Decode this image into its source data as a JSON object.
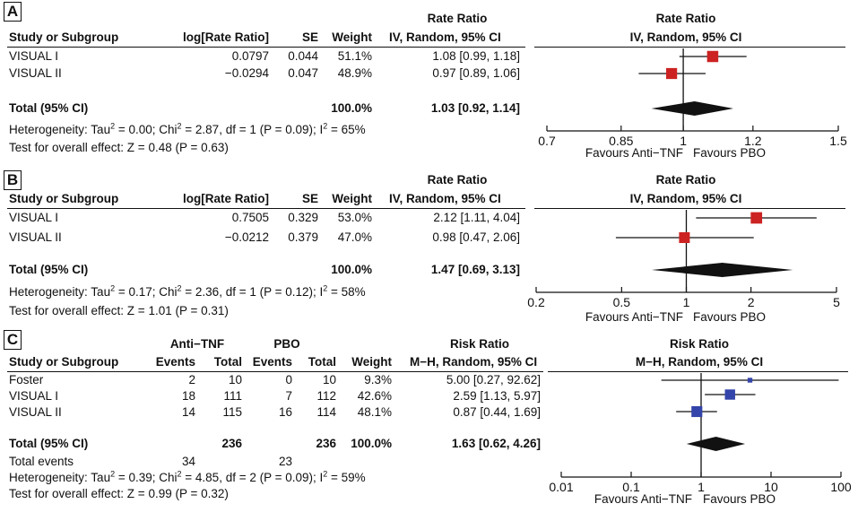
{
  "chart_data": [
    {
      "type": "forest",
      "panel": "A",
      "scale": "log",
      "xlim": [
        0.7,
        1.5
      ],
      "xticks": [
        0.7,
        0.85,
        1,
        1.2,
        1.5
      ],
      "xtick_labels": [
        "0.7",
        "0.85",
        "1",
        "1.2",
        "1.5"
      ],
      "marker_color": "#cc2222",
      "headers": {
        "top": "Rate Ratio",
        "study": "Study or Subgroup",
        "c1": "log[Rate Ratio]",
        "c2": "SE",
        "weight": "Weight",
        "effect": "IV, Random, 95% CI",
        "plot_title": "Rate Ratio",
        "plot_sub": "IV, Random, 95% CI"
      },
      "studies": [
        {
          "name": "VISUAL I",
          "c1": "0.0797",
          "c2": "0.044",
          "weight": "51.1%",
          "ci_text": "1.08 [0.99, 1.18]",
          "est": 1.08,
          "lo": 0.99,
          "hi": 1.18,
          "w": 51.1
        },
        {
          "name": "VISUAL II",
          "c1": "−0.0294",
          "c2": "0.047",
          "weight": "48.9%",
          "ci_text": "0.97 [0.89, 1.06]",
          "est": 0.97,
          "lo": 0.89,
          "hi": 1.06,
          "w": 48.9
        }
      ],
      "total": {
        "label": "Total (95% CI)",
        "weight": "100.0%",
        "ci_text": "1.03 [0.92, 1.14]",
        "est": 1.03,
        "lo": 0.92,
        "hi": 1.14
      },
      "heterogeneity": {
        "prefix": "Heterogeneity: Tau",
        "sup1": "2",
        "mid": " = 0.00; Chi",
        "sup2": "2",
        "mid2": " = 2.87, df = 1 (P = 0.09); I",
        "sup3": "2",
        "suffix": " = 65%"
      },
      "overall": "Test for overall effect: Z = 0.48 (P = 0.63)",
      "favours_left": "Favours Anti−TNF",
      "favours_right": "Favours PBO"
    },
    {
      "type": "forest",
      "panel": "B",
      "scale": "log",
      "xlim": [
        0.2,
        5
      ],
      "xticks": [
        0.2,
        0.5,
        1,
        2,
        5
      ],
      "xtick_labels": [
        "0.2",
        "0.5",
        "1",
        "2",
        "5"
      ],
      "marker_color": "#cc2222",
      "headers": {
        "top": "Rate Ratio",
        "study": "Study or Subgroup",
        "c1": "log[Rate Ratio]",
        "c2": "SE",
        "weight": "Weight",
        "effect": "IV, Random, 95% CI",
        "plot_title": "Rate Ratio",
        "plot_sub": "IV, Random, 95% CI"
      },
      "studies": [
        {
          "name": "VISUAL I",
          "c1": "0.7505",
          "c2": "0.329",
          "weight": "53.0%",
          "ci_text": "2.12 [1.11, 4.04]",
          "est": 2.12,
          "lo": 1.11,
          "hi": 4.04,
          "w": 53.0
        },
        {
          "name": "VISUAL II",
          "c1": "−0.0212",
          "c2": "0.379",
          "weight": "47.0%",
          "ci_text": "0.98 [0.47, 2.06]",
          "est": 0.98,
          "lo": 0.47,
          "hi": 2.06,
          "w": 47.0
        }
      ],
      "total": {
        "label": "Total (95% CI)",
        "weight": "100.0%",
        "ci_text": "1.47 [0.69, 3.13]",
        "est": 1.47,
        "lo": 0.69,
        "hi": 3.13
      },
      "heterogeneity": {
        "prefix": "Heterogeneity: Tau",
        "sup1": "2",
        "mid": " = 0.17; Chi",
        "sup2": "2",
        "mid2": " = 2.36, df = 1 (P = 0.12); I",
        "sup3": "2",
        "suffix": " = 58%"
      },
      "overall": "Test for overall effect: Z = 1.01 (P = 0.31)",
      "favours_left": "Favours Anti−TNF",
      "favours_right": "Favours PBO"
    },
    {
      "type": "forest",
      "panel": "C",
      "scale": "log",
      "xlim": [
        0.01,
        100
      ],
      "xticks": [
        0.01,
        0.1,
        1,
        10,
        100
      ],
      "xtick_labels": [
        "0.01",
        "0.1",
        "1",
        "10",
        "100"
      ],
      "marker_color": "#3344aa",
      "headers": {
        "group1": "Anti−TNF",
        "group2": "PBO",
        "top": "Risk Ratio",
        "study": "Study or Subgroup",
        "ev1": "Events",
        "tot1": "Total",
        "ev2": "Events",
        "tot2": "Total",
        "weight": "Weight",
        "effect": "M−H, Random, 95% CI",
        "plot_title": "Risk Ratio",
        "plot_sub": "M−H, Random, 95% CI"
      },
      "studies": [
        {
          "name": "Foster",
          "ev1": "2",
          "tot1": "10",
          "ev2": "0",
          "tot2": "10",
          "weight": "9.3%",
          "ci_text": "5.00 [0.27, 92.62]",
          "est": 5.0,
          "lo": 0.27,
          "hi": 92.62,
          "w": 9.3
        },
        {
          "name": "VISUAL I",
          "ev1": "18",
          "tot1": "111",
          "ev2": "7",
          "tot2": "112",
          "weight": "42.6%",
          "ci_text": "2.59 [1.13, 5.97]",
          "est": 2.59,
          "lo": 1.13,
          "hi": 5.97,
          "w": 42.6
        },
        {
          "name": "VISUAL II",
          "ev1": "14",
          "tot1": "115",
          "ev2": "16",
          "tot2": "114",
          "weight": "48.1%",
          "ci_text": "0.87 [0.44, 1.69]",
          "est": 0.87,
          "lo": 0.44,
          "hi": 1.69,
          "w": 48.1
        }
      ],
      "total": {
        "label": "Total (95% CI)",
        "tot1": "236",
        "tot2": "236",
        "weight": "100.0%",
        "ci_text": "1.63 [0.62, 4.26]",
        "est": 1.63,
        "lo": 0.62,
        "hi": 4.26
      },
      "total_events": {
        "label": "Total events",
        "ev1": "34",
        "ev2": "23"
      },
      "heterogeneity": {
        "prefix": "Heterogeneity: Tau",
        "sup1": "2",
        "mid": " = 0.39; Chi",
        "sup2": "2",
        "mid2": " = 4.85, df = 2 (P = 0.09); I",
        "sup3": "2",
        "suffix": " = 59%"
      },
      "overall": "Test for overall effect: Z = 0.99 (P = 0.32)",
      "favours_left": "Favours Anti−TNF",
      "favours_right": "Favours PBO"
    }
  ]
}
